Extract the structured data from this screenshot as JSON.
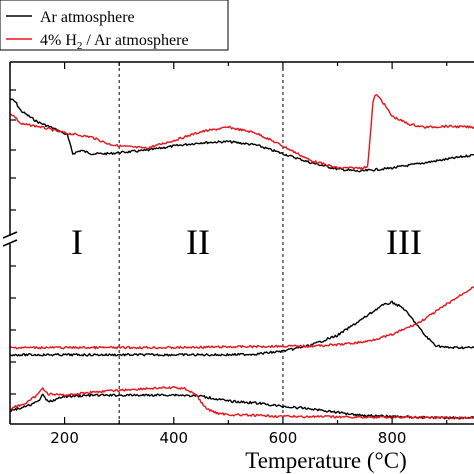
{
  "chart_data": {
    "type": "line",
    "xlabel": "Temperature (°C)",
    "xlim": [
      100,
      950
    ],
    "xticks": [
      200,
      400,
      600,
      800
    ],
    "axis_break": true,
    "region_boundaries": [
      300,
      600
    ],
    "regions": [
      "I",
      "II",
      "III"
    ],
    "legend": {
      "position": "top-left",
      "entries": [
        {
          "label": "Ar atmosphere",
          "color": "#000000"
        },
        {
          "label_parts": [
            "4% H",
            "2",
            " / Ar atmosphere"
          ],
          "color": "#e8141b"
        }
      ]
    },
    "colors": {
      "ar": "#000000",
      "h2": "#e8141b"
    },
    "panels": [
      {
        "name": "upper",
        "ylim": [
          0,
          1
        ],
        "series": [
          {
            "name": "Ar atmosphere",
            "color": "#000000",
            "x": [
              100,
              110,
              120,
              150,
              180,
              205,
              215,
              230,
              250,
              280,
              300,
              350,
              400,
              450,
              500,
              550,
              600,
              650,
              700,
              740,
              760,
              780,
              800,
              850,
              900,
              950
            ],
            "y": [
              0.83,
              0.8,
              0.72,
              0.62,
              0.56,
              0.5,
              0.33,
              0.36,
              0.33,
              0.33,
              0.34,
              0.36,
              0.4,
              0.43,
              0.44,
              0.41,
              0.33,
              0.25,
              0.19,
              0.17,
              0.18,
              0.19,
              0.2,
              0.24,
              0.28,
              0.32
            ]
          },
          {
            "name": "4% H2 / Ar atmosphere",
            "color": "#e8141b",
            "x": [
              100,
              110,
              120,
              150,
              200,
              250,
              280,
              300,
              350,
              400,
              450,
              500,
              550,
              600,
              650,
              700,
              740,
              755,
              760,
              765,
              770,
              780,
              800,
              830,
              860,
              900,
              950
            ],
            "y": [
              0.7,
              0.66,
              0.6,
              0.58,
              0.52,
              0.48,
              0.42,
              0.4,
              0.38,
              0.45,
              0.53,
              0.57,
              0.52,
              0.4,
              0.27,
              0.2,
              0.2,
              0.21,
              0.5,
              0.8,
              0.87,
              0.82,
              0.67,
              0.6,
              0.57,
              0.58,
              0.57
            ]
          }
        ]
      },
      {
        "name": "lower-middle",
        "ylim": [
          0,
          1
        ],
        "series": [
          {
            "name": "Ar atmosphere",
            "color": "#000000",
            "x": [
              100,
              200,
              300,
              400,
              500,
              550,
              600,
              650,
              700,
              750,
              780,
              800,
              820,
              840,
              860,
              880,
              900,
              950
            ],
            "y": [
              0.1,
              0.1,
              0.1,
              0.1,
              0.1,
              0.11,
              0.15,
              0.23,
              0.37,
              0.62,
              0.78,
              0.83,
              0.75,
              0.57,
              0.37,
              0.23,
              0.2,
              0.2
            ]
          },
          {
            "name": "4% H2 / Ar atmosphere",
            "color": "#e8141b",
            "x": [
              100,
              200,
              300,
              400,
              500,
              600,
              650,
              700,
              750,
              800,
              850,
              900,
              950
            ],
            "y": [
              0.2,
              0.2,
              0.2,
              0.2,
              0.21,
              0.22,
              0.22,
              0.24,
              0.28,
              0.38,
              0.55,
              0.8,
              1.05
            ]
          }
        ]
      },
      {
        "name": "lower-bottom",
        "ylim": [
          0,
          1
        ],
        "series": [
          {
            "name": "Ar atmosphere",
            "color": "#000000",
            "x": [
              100,
              130,
              150,
              160,
              170,
              200,
              250,
              300,
              350,
              400,
              450,
              500,
              550,
              600,
              650,
              700,
              750,
              800,
              850,
              900,
              950
            ],
            "y": [
              0.2,
              0.3,
              0.4,
              0.55,
              0.4,
              0.52,
              0.55,
              0.55,
              0.55,
              0.56,
              0.53,
              0.42,
              0.38,
              0.3,
              0.25,
              0.17,
              0.1,
              0.08,
              0.06,
              0.05,
              0.05
            ]
          },
          {
            "name": "4% H2 / Ar atmosphere",
            "color": "#e8141b",
            "x": [
              100,
              130,
              150,
              160,
              170,
              200,
              250,
              300,
              350,
              400,
              420,
              440,
              450,
              460,
              480,
              500,
              550,
              600,
              700,
              800,
              900,
              950
            ],
            "y": [
              0.25,
              0.38,
              0.55,
              0.72,
              0.58,
              0.55,
              0.62,
              0.66,
              0.7,
              0.72,
              0.7,
              0.58,
              0.4,
              0.25,
              0.15,
              0.12,
              0.1,
              0.08,
              0.07,
              0.06,
              0.05,
              0.05
            ]
          }
        ]
      }
    ]
  }
}
